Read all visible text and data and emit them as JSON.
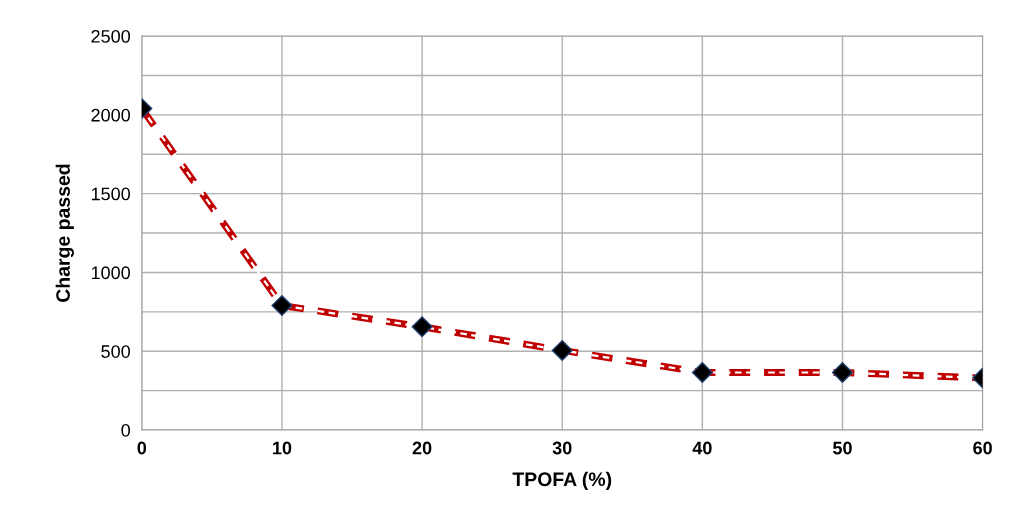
{
  "chart_data": {
    "type": "line",
    "xlabel": "TPOFA (%)",
    "ylabel": "Charge passed",
    "x": [
      0,
      10,
      20,
      30,
      40,
      50,
      60
    ],
    "series": [
      {
        "color": "#c00000",
        "values": [
          2040,
          790,
          655,
          505,
          365,
          365,
          330
        ]
      }
    ],
    "xlim": [
      0,
      60
    ],
    "xticks": [
      0,
      10,
      20,
      30,
      40,
      50,
      60
    ],
    "ylim": [
      0,
      2500
    ],
    "yticks": [
      0,
      {
        "value": 250,
        "label": null
      },
      500,
      {
        "value": 750,
        "label": null
      },
      1000,
      {
        "value": 1250,
        "label": null
      },
      1500,
      {
        "value": 1750,
        "label": null
      },
      2000,
      {
        "value": 2250,
        "label": null
      },
      2500
    ],
    "grid": true,
    "marker": "diamond",
    "line_style": "dashed",
    "legend": false
  }
}
